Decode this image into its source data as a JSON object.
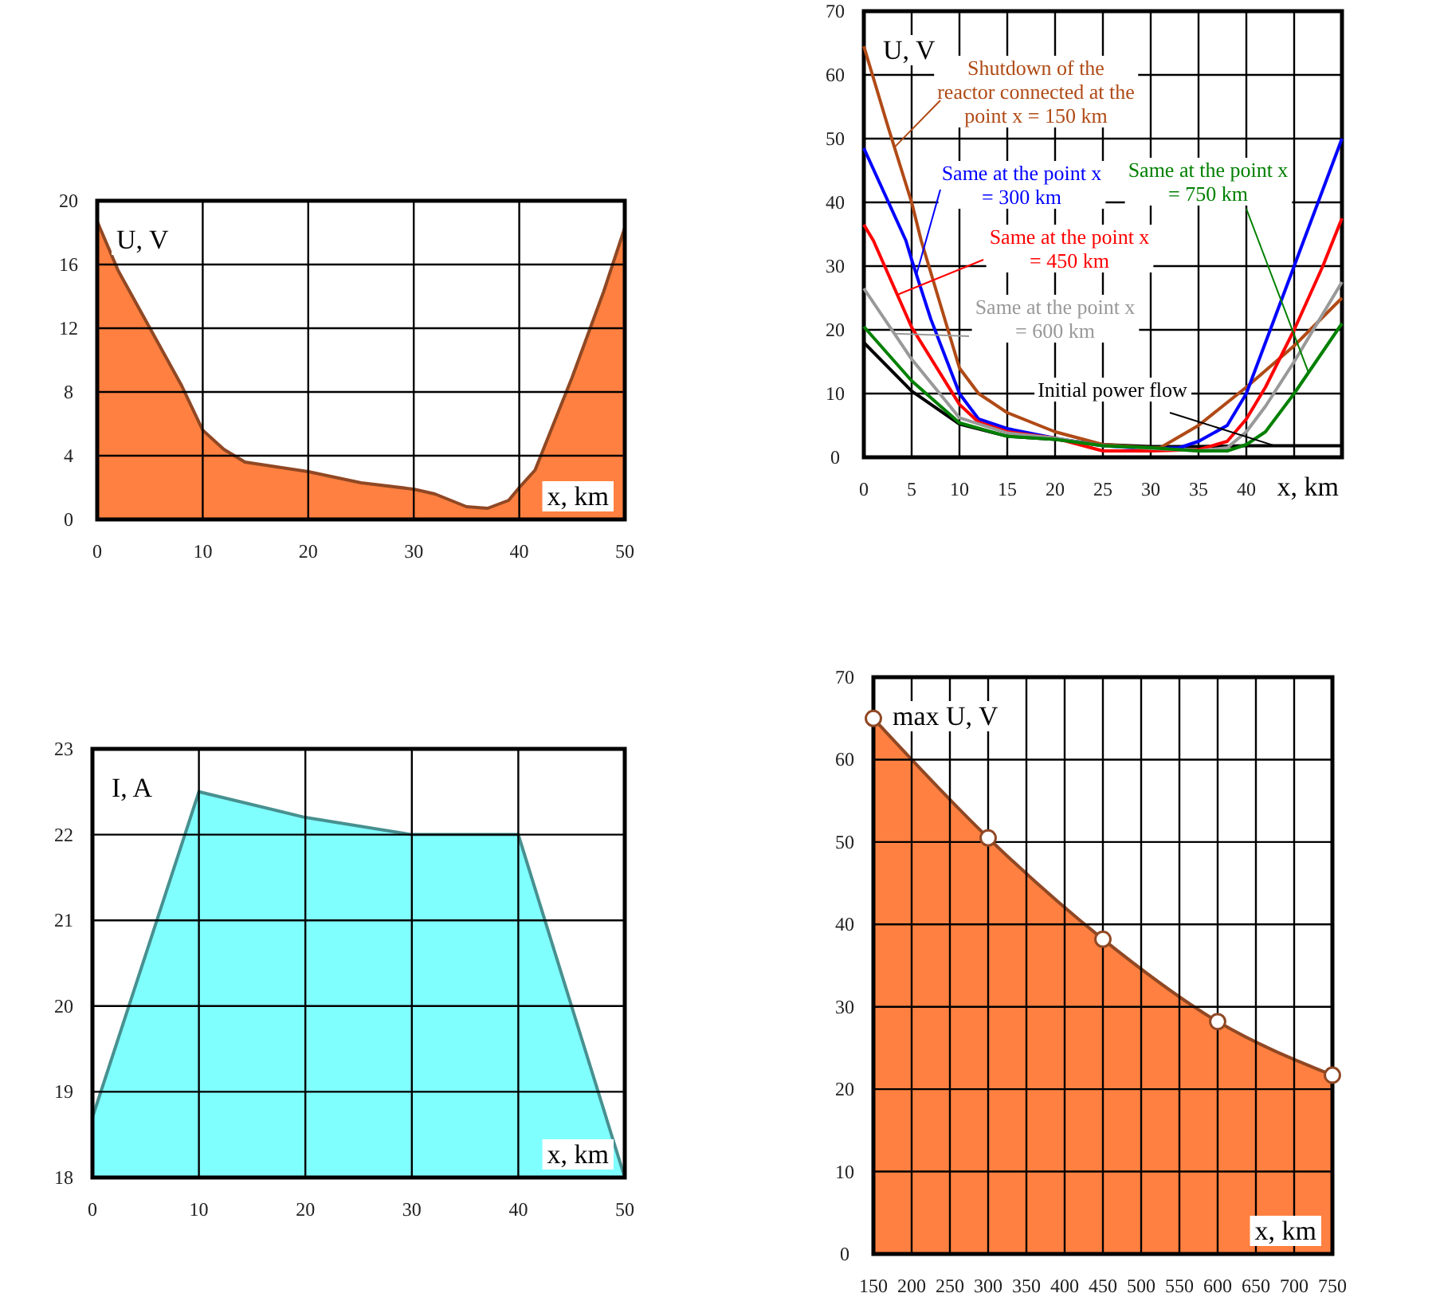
{
  "chart_data": [
    {
      "type": "area",
      "ylabel": "U, V",
      "xlabel": "x, km",
      "xlim": [
        0,
        50
      ],
      "xticks": [
        0,
        10,
        20,
        30,
        40,
        50
      ],
      "ylim": [
        0,
        20
      ],
      "yticks": [
        0,
        4,
        8,
        12,
        16,
        20
      ],
      "grid": true,
      "legend": false,
      "series": [
        {
          "color": "#ff8040",
          "x": [
            0,
            2,
            5,
            8,
            10,
            12,
            14,
            15,
            20,
            25,
            30,
            32,
            35,
            37,
            39,
            40,
            41.5,
            45,
            48,
            50
          ],
          "values": [
            18.7,
            15.6,
            12,
            8.4,
            5.6,
            4.4,
            3.6,
            3.5,
            3.0,
            2.3,
            1.9,
            1.6,
            0.8,
            0.7,
            1.2,
            2.0,
            3.1,
            8.9,
            14.3,
            18.3
          ]
        }
      ]
    },
    {
      "type": "line",
      "ylabel": "U, V",
      "xlabel": "x, km",
      "xlim": [
        0,
        50
      ],
      "xticks": [
        0,
        5,
        10,
        15,
        20,
        25,
        30,
        35,
        40,
        {
          "value": 45,
          "label": null
        }
      ],
      "ylim": [
        0,
        70
      ],
      "yticks": [
        0,
        10,
        20,
        30,
        40,
        50,
        60,
        70
      ],
      "grid": true,
      "legend": false,
      "series": [
        {
          "name": "Initial power flow",
          "color": "#000000",
          "x": [
            0,
            5,
            10,
            15,
            20,
            25,
            30,
            35,
            40,
            45,
            50
          ],
          "values": [
            18,
            10.4,
            5.2,
            3.3,
            2.8,
            2,
            1.7,
            1.7,
            1.8,
            1.8,
            1.8
          ]
        },
        {
          "name": "Shutdown of the reactor connected at the point x = 150 km",
          "color": "#b04a16",
          "x": [
            0,
            2.5,
            5,
            6,
            9.4,
            10,
            12,
            15,
            20,
            25,
            30,
            31,
            35,
            40,
            45,
            50
          ],
          "values": [
            64.5,
            52,
            40,
            34,
            17,
            14,
            10,
            7,
            4,
            2,
            1.5,
            1.5,
            5,
            11,
            17.5,
            25
          ]
        },
        {
          "name": "Same at the point x = 300 km",
          "color": "#0000ff",
          "x": [
            0,
            4.4,
            5,
            7,
            10,
            12,
            15,
            20,
            25,
            30,
            33,
            35,
            38,
            40,
            42,
            45,
            48,
            50
          ],
          "values": [
            48.5,
            34,
            31,
            21.7,
            10,
            6,
            4.5,
            3,
            1.8,
            1.3,
            1.5,
            2.5,
            5,
            10,
            18,
            30,
            42,
            50
          ]
        },
        {
          "name": "Same at the point x = 450 km",
          "color": "#ff0000",
          "x": [
            0,
            1,
            5,
            10,
            12,
            15,
            20,
            25,
            30,
            35,
            38,
            40,
            42,
            45,
            48,
            50
          ],
          "values": [
            36.5,
            34,
            20.4,
            8.3,
            5.5,
            4,
            3,
            1,
            1,
            1.2,
            2.5,
            6,
            11,
            20,
            30,
            37.5
          ]
        },
        {
          "name": "Same at the point x = 600 km",
          "color": "#999999",
          "x": [
            0,
            5,
            10,
            15,
            20,
            25,
            30,
            35,
            38,
            40,
            42,
            45,
            50
          ],
          "values": [
            26.5,
            15.4,
            6.2,
            3.8,
            3,
            1.8,
            1.4,
            1,
            1.5,
            4,
            8,
            15,
            27.5
          ]
        },
        {
          "name": "Same at the point x = 750 km",
          "color": "#008000",
          "x": [
            0,
            5,
            10,
            15,
            20,
            25,
            30,
            35,
            38,
            40,
            42,
            45,
            50
          ],
          "values": [
            20.5,
            12,
            5.4,
            3.3,
            2.8,
            1.8,
            1.5,
            1,
            1,
            2,
            4,
            10,
            21
          ]
        }
      ]
    },
    {
      "type": "area",
      "ylabel": "I, A",
      "xlabel": "x, km",
      "xlim": [
        0,
        50
      ],
      "xticks": [
        0,
        10,
        20,
        30,
        40,
        50
      ],
      "ylim": [
        18,
        23
      ],
      "yticks": [
        18,
        19,
        20,
        21,
        22,
        23
      ],
      "grid": true,
      "legend": false,
      "series": [
        {
          "color": "#80ffff",
          "x": [
            0,
            10,
            20,
            30,
            40,
            50
          ],
          "values": [
            18.7,
            22.5,
            22.2,
            22,
            22,
            18
          ]
        }
      ]
    },
    {
      "type": "area",
      "ylabel": "max U, V",
      "xlabel": "x, km",
      "xlim": [
        150,
        750
      ],
      "xticks": [
        150,
        200,
        250,
        300,
        350,
        400,
        450,
        500,
        550,
        600,
        650,
        700,
        750
      ],
      "ylim": [
        0,
        70
      ],
      "yticks": [
        0,
        10,
        20,
        30,
        40,
        50,
        60,
        70
      ],
      "grid": true,
      "legend": false,
      "marker": "circle",
      "series": [
        {
          "color": "#ff8040",
          "x": [
            150,
            300,
            450,
            600,
            750
          ],
          "values": [
            65,
            50.5,
            38.2,
            28.2,
            21.7
          ]
        }
      ]
    }
  ]
}
